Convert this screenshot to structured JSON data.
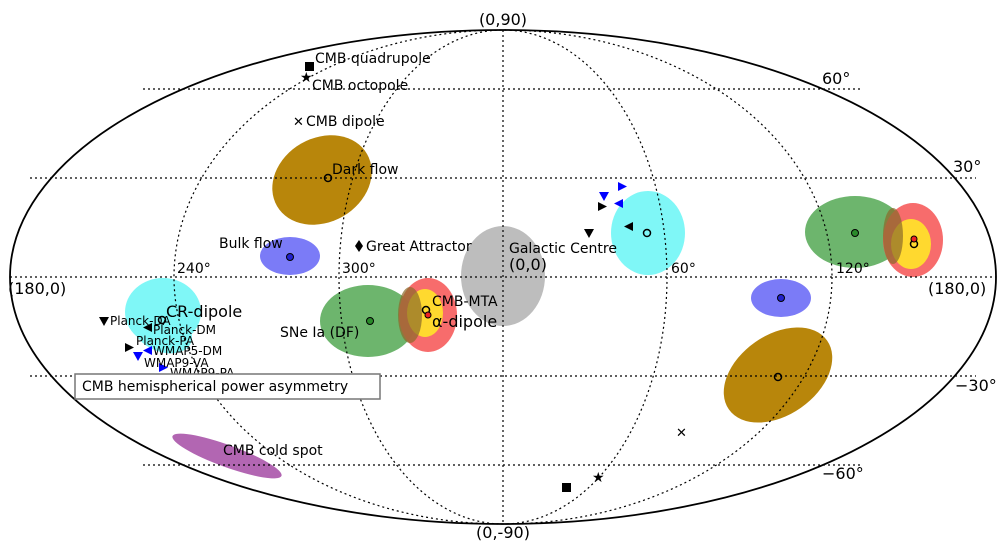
{
  "axis_labels": {
    "north_pole": "(0,90)",
    "south_pole": "(0,-90)",
    "left_edge": "(180,0)",
    "right_edge": "(180,0)",
    "centre": "(0,0)",
    "lat_60": "60°",
    "lat_30": "30°",
    "lat_m30": "−30°",
    "lat_m60": "−60°",
    "lon_240": "240°",
    "lon_300": "300°",
    "lon_60": "60°",
    "lon_120": "120°"
  },
  "labels": {
    "cmb_quadrupole": "CMB quadrupole",
    "cmb_octopole": "CMB octopole",
    "cmb_dipole": "CMB dipole",
    "dark_flow": "Dark flow",
    "bulk_flow": "Bulk flow",
    "great_attractor": "Great Attractor",
    "galactic_centre": "Galactic Centre",
    "cr_dipole": "CR-dipole",
    "planck_da": "Planck-DA",
    "planck_dm": "Planck-DM",
    "planck_pa": "Planck-PA",
    "wmap5_dm": "WMAP5-DM",
    "wmap9_va": "WMAP9-VA",
    "wmap9_pa": "WMAP9-PA",
    "sne_ia": "SNe Ia (DF)",
    "cmb_mta": "CMB-MTA",
    "alpha_dipole": "α-dipole",
    "cmb_cold_spot": "CMB cold spot",
    "hemispherical": "CMB hemispherical power asymmetry"
  },
  "colors": {
    "brown": "#b8860b",
    "blue": "#7b7bf7",
    "cyan": "#7ff7f7",
    "green": "#6db56d",
    "red": "#f76464",
    "yellow": "#ffd92f",
    "grey": "#bdbdbd",
    "purple": "#b266b2",
    "marker_blue": "#0000ff"
  }
}
